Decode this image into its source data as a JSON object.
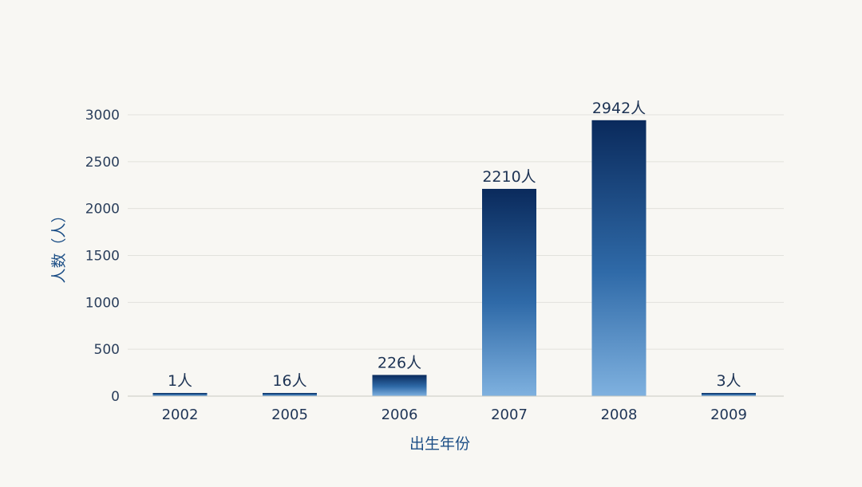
{
  "chart_data": {
    "type": "bar",
    "xlabel": "出生年份",
    "ylabel": "人数（人）",
    "categories": [
      "2002",
      "2005",
      "2006",
      "2007",
      "2008",
      "2009"
    ],
    "values": [
      1,
      16,
      226,
      2210,
      2942,
      3
    ],
    "data_labels": [
      "1人",
      "16人",
      "226人",
      "2210人",
      "2942人",
      "3人"
    ],
    "yticks": [
      "0",
      "500",
      "1000",
      "1500",
      "2000",
      "2500",
      "3000"
    ],
    "ylim": [
      0,
      3000
    ],
    "grid": true,
    "colors": {
      "bar_top": "#0a2a5c",
      "bar_bottom": "#7fb1df",
      "grid": "#e2e2dc",
      "axis": "#c9c9c2",
      "axis_title": "#1d4f86"
    }
  }
}
